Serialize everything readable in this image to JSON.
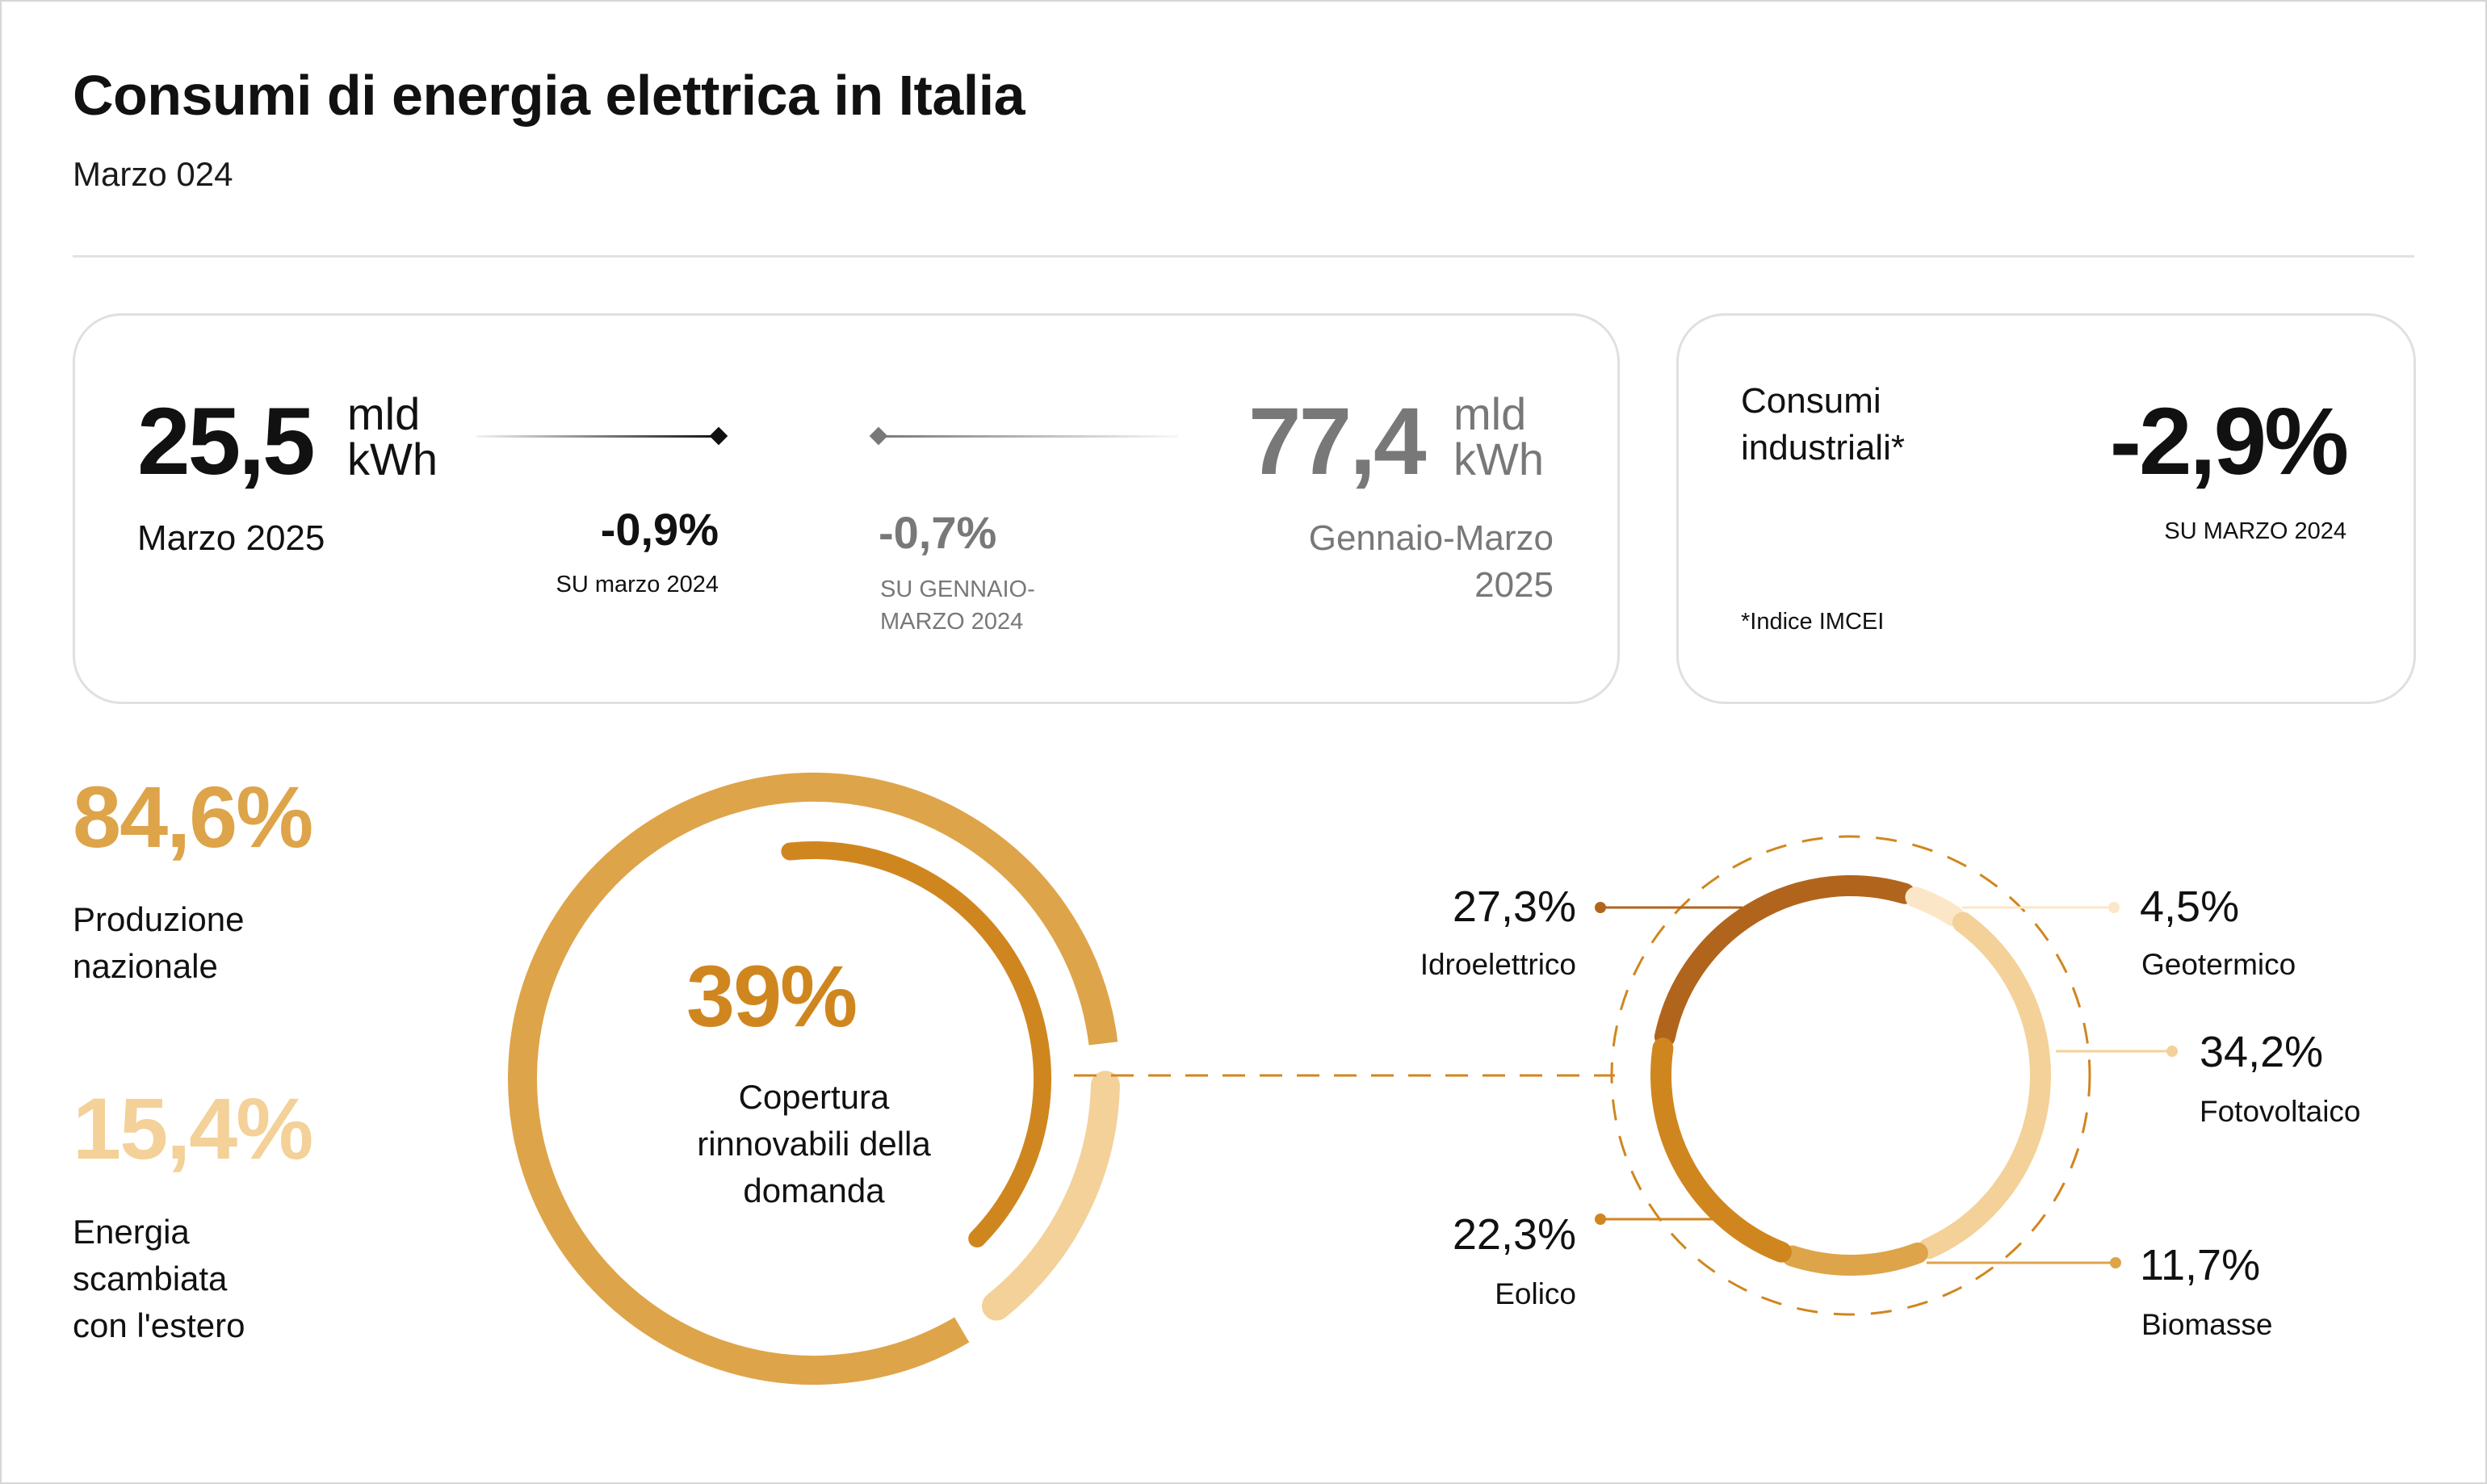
{
  "header": {
    "title": "Consumi di energia elettrica in Italia",
    "subtitle": "Marzo 024"
  },
  "monthly": {
    "value": "25,5",
    "unit_line1": "mld",
    "unit_line2": "kWh",
    "period": "Marzo 2025",
    "delta": "-0,9%",
    "delta_label": "SU marzo 2024"
  },
  "cumulative": {
    "value": "77,4",
    "unit_line1": "mld",
    "unit_line2": "kWh",
    "period_line1": "Gennaio-Marzo",
    "period_line2": "2025",
    "delta": "-0,7%",
    "delta_label_line1": "SU GENNAIO-",
    "delta_label_line2": "MARZO 2024"
  },
  "industrial": {
    "label_line1": "Consumi",
    "label_line2": "industriali*",
    "delta": "-2,9%",
    "delta_label": "SU MARZO 2024",
    "footnote": "*Indice IMCEI"
  },
  "production": {
    "national_pct": "84,6%",
    "national_label_line1": "Produzione",
    "national_label_line2": "nazionale",
    "exchange_pct": "15,4%",
    "exchange_label_line1": "Energia",
    "exchange_label_line2": "scambiata",
    "exchange_label_line3": "con l'estero"
  },
  "coverage": {
    "pct": "39%",
    "label_line1": "Copertura",
    "label_line2": "rinnovabili della",
    "label_line3": "domanda"
  },
  "colors": {
    "gold": "#dea44a",
    "pale_gold": "#f3d198",
    "orange": "#d0861f",
    "brown": "#b1651c",
    "cream": "#fbe7c8",
    "dark": "#111111",
    "grey": "#787878"
  },
  "chart_data": [
    {
      "type": "pie",
      "title": "",
      "categories": [
        "Produzione nazionale",
        "Energia scambiata con l'estero"
      ],
      "values": [
        84.6,
        15.4
      ],
      "inner_series": {
        "name": "Copertura rinnovabili della domanda",
        "value": 39
      }
    },
    {
      "type": "pie",
      "title": "",
      "categories": [
        "Idroelettrico",
        "Geotermico",
        "Fotovoltaico",
        "Biomasse",
        "Eolico"
      ],
      "values": [
        27.3,
        4.5,
        34.2,
        11.7,
        22.3
      ],
      "labels": [
        "27,3%",
        "4,5%",
        "34,2%",
        "11,7%",
        "22,3%"
      ],
      "colors": [
        "#b1651c",
        "#fbe7c8",
        "#f3d198",
        "#dea44a",
        "#d0861f"
      ]
    }
  ]
}
